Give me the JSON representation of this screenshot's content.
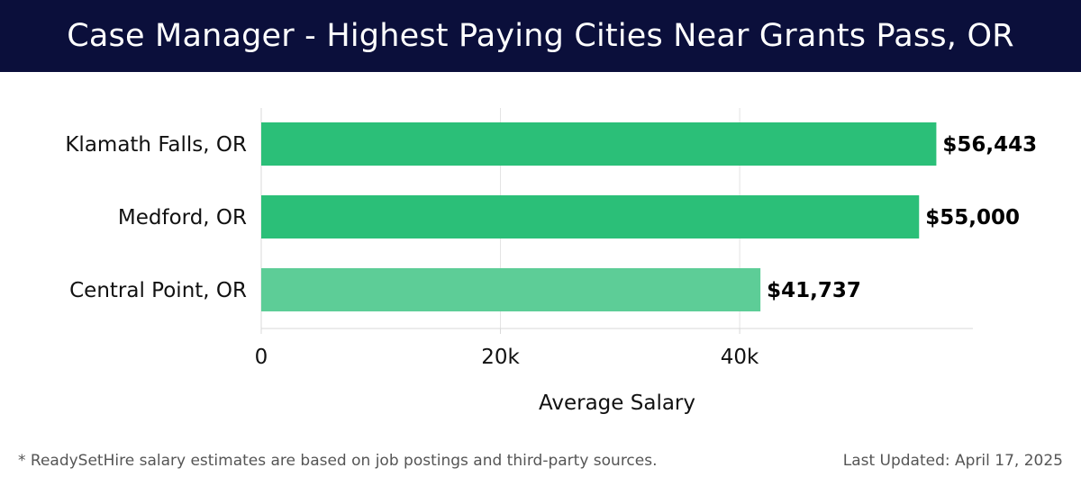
{
  "header": {
    "title": "Case Manager - Highest Paying Cities Near Grants Pass, OR"
  },
  "footer": {
    "note": "* ReadySetHire salary estimates are based on job postings and third-party sources.",
    "last_updated": "Last Updated: April 17, 2025"
  },
  "colors": {
    "header_bg": "#0b0f3b",
    "bar_primary": "#2bbf78",
    "bar_secondary": "#5dcd97"
  },
  "chart_data": {
    "type": "bar",
    "orientation": "horizontal",
    "categories": [
      "Klamath Falls, OR",
      "Medford, OR",
      "Central Point, OR"
    ],
    "values": [
      56443,
      55000,
      41737
    ],
    "value_labels": [
      "$56,443",
      "$55,000",
      "$41,737"
    ],
    "xlabel": "Average Salary",
    "ylabel": "",
    "xlim": [
      0,
      59500
    ],
    "xticks": [
      0,
      20000,
      40000
    ],
    "xtick_labels": [
      "0",
      "20k",
      "40k"
    ],
    "grid": true
  }
}
